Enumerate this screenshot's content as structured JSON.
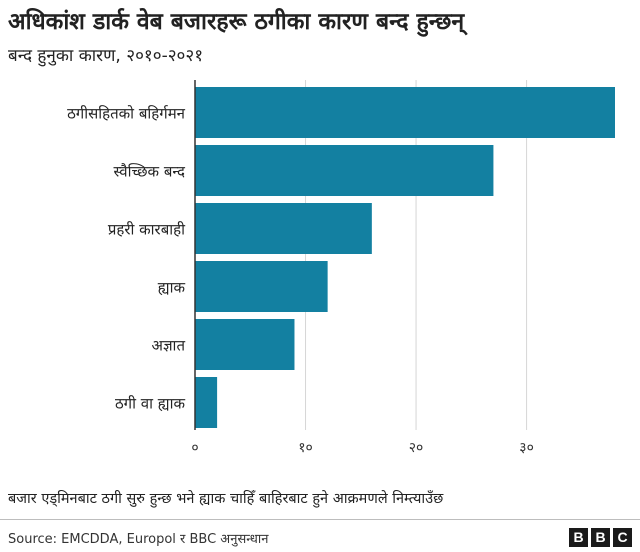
{
  "header": {
    "title": "अधिकांश डार्क वेब बजारहरू ठगीका कारण बन्द हुन्छन्",
    "subtitle": "बन्द हुनुका कारण, २०१०-२०२१"
  },
  "chart_data": {
    "type": "bar",
    "orientation": "horizontal",
    "categories": [
      "ठगीसहितको बहिर्गमन",
      "स्वैच्छिक बन्द",
      "प्रहरी कारबाही",
      "ह्याक",
      "अज्ञात",
      "ठगी वा ह्याक"
    ],
    "values": [
      38,
      27,
      16,
      12,
      9,
      2
    ],
    "xticks": [
      0,
      10,
      20,
      30
    ],
    "xtick_labels": [
      "०",
      "१०",
      "२०",
      "३०"
    ],
    "xlim": [
      0,
      38
    ],
    "grid": "vertical",
    "bar_color": "#1380A1"
  },
  "note": "बजार एड्मिनबाट ठगी सुरु हुन्छ भने ह्याक चाहिँ बाहिरबाट हुने आक्रमणले निम्त्याउँछ",
  "footer": {
    "source": "Source: EMCDDA, Europol र BBC अनुसन्धान",
    "logo_letters": [
      "B",
      "B",
      "C"
    ]
  }
}
